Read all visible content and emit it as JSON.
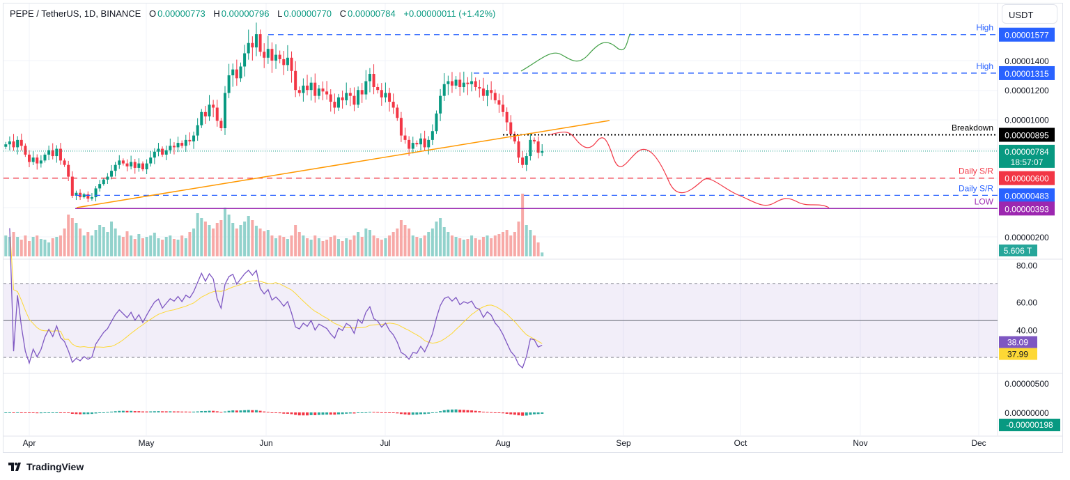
{
  "header": {
    "symbol": "PEPE / TetherUS, 1D, BINANCE",
    "o_label": "O",
    "o": "0.00000773",
    "h_label": "H",
    "h": "0.00000796",
    "l_label": "L",
    "l": "0.00000770",
    "c_label": "C",
    "c": "0.00000784",
    "change": "+0.00000011 (+1.42%)"
  },
  "currency": "USDT",
  "footer": {
    "brand": "TradingView"
  },
  "colors": {
    "up": "#089981",
    "down": "#f23645",
    "vol_up": "#92d2cc",
    "vol_down": "#f7a9a7",
    "rsi": "#7e57c2",
    "rsi_ma": "#fdd835",
    "trendline": "#ff9800",
    "blue_level": "#2962ff",
    "red_level": "#f23645",
    "low_level": "#9c27b0"
  },
  "levels": [
    {
      "label": "High",
      "value": "0.00001577",
      "color": "#2962ff"
    },
    {
      "label": "High",
      "value": "0.00001315",
      "color": "#2962ff"
    },
    {
      "label": "Breakdown",
      "value": "0.00000895",
      "color": "#000000"
    },
    {
      "label": "Daily S/R",
      "value": "0.00000600",
      "color": "#f23645"
    },
    {
      "label": "Daily S/R",
      "value": "0.00000483",
      "color": "#2962ff"
    },
    {
      "label": "LOW",
      "value": "0.00000393",
      "color": "#9c27b0"
    }
  ],
  "last_price": {
    "value": "0.00000784",
    "countdown": "18:57:07"
  },
  "volume_label": "5.606 T",
  "rsi_labels": {
    "rsi": "38.09",
    "ma": "37.99"
  },
  "macd_label": "-0.00000198",
  "chart_data": [
    {
      "type": "candlestick",
      "title": "PEPE / TetherUS, 1D, BINANCE",
      "start_date": "2024-03-26",
      "interval": "1D",
      "x_ticks": [
        "Apr",
        "May",
        "Jun",
        "Jul",
        "Aug",
        "Sep",
        "Oct",
        "Nov",
        "Dec"
      ],
      "y_ticks": [
        "0.00001400",
        "0.00001200",
        "0.00001000",
        "0.00000200"
      ],
      "ylim": [
        2e-07,
        1.65e-05
      ],
      "close": [
        8.3e-06,
        8.5e-06,
        8.1e-06,
        8.6e-06,
        8.2e-06,
        7.6e-06,
        7.1e-06,
        7.4e-06,
        7e-06,
        7.2e-06,
        7.6e-06,
        7.9e-06,
        7.5e-06,
        8e-06,
        7.2e-06,
        6.9e-06,
        6.1e-06,
        4.8e-06,
        5e-06,
        4.7e-06,
        4.9e-06,
        4.6e-06,
        4.7e-06,
        5.3e-06,
        5.6e-06,
        5.9e-06,
        6.1e-06,
        6.5e-06,
        6.9e-06,
        7.2e-06,
        7e-06,
        6.8e-06,
        7.1e-06,
        6.7e-06,
        7e-06,
        6.6e-06,
        7e-06,
        7.4e-06,
        7.8e-06,
        8e-06,
        7.6e-06,
        7.9e-06,
        8.2e-06,
        8.1e-06,
        8.4e-06,
        8.2e-06,
        8.6e-06,
        8.5e-06,
        8.9e-06,
        9.6e-06,
        1.05e-05,
        1.02e-05,
        1.1e-05,
        1.08e-05,
        9.9e-06,
        9.4e-06,
        1.18e-05,
        1.3e-05,
        1.34e-05,
        1.28e-05,
        1.36e-05,
        1.45e-05,
        1.52e-05,
        1.49e-05,
        1.58e-05,
        1.46e-05,
        1.42e-05,
        1.48e-05,
        1.4e-05,
        1.44e-05,
        1.41e-05,
        1.37e-05,
        1.42e-05,
        1.33e-05,
        1.2e-05,
        1.18e-05,
        1.23e-05,
        1.2e-05,
        1.25e-05,
        1.16e-05,
        1.21e-05,
        1.19e-05,
        1.17e-05,
        1.12e-05,
        1.08e-05,
        1.15e-05,
        1.13e-05,
        1.18e-05,
        1.16e-05,
        1.1e-05,
        1.2e-05,
        1.17e-05,
        1.26e-05,
        1.31e-05,
        1.22e-05,
        1.2e-05,
        1.15e-05,
        1.18e-05,
        1.12e-05,
        1.08e-05,
        1.01e-05,
        8.9e-06,
        8.6e-06,
        8e-06,
        8.4e-06,
        8.3e-06,
        8.7e-06,
        8.1e-06,
        8.6e-06,
        9.2e-06,
        1.04e-05,
        1.16e-05,
        1.24e-05,
        1.26e-05,
        1.23e-05,
        1.27e-05,
        1.22e-05,
        1.25e-05,
        1.24e-05,
        1.26e-05,
        1.22e-05,
        1.21e-05,
        1.16e-05,
        1.2e-05,
        1.18e-05,
        1.13e-05,
        1.1e-05,
        1.05e-05,
        9.8e-06,
        9e-06,
        8.5e-06,
        7.4e-06,
        6.9e-06,
        7.5e-06,
        8.6e-06,
        8.5e-06,
        7.73e-06,
        7.84e-06
      ],
      "volume_unit": "T",
      "volume": [
        30,
        28,
        35,
        28,
        24,
        30,
        22,
        28,
        30,
        25,
        24,
        20,
        26,
        28,
        30,
        40,
        60,
        55,
        48,
        40,
        30,
        35,
        30,
        38,
        45,
        42,
        35,
        50,
        40,
        30,
        28,
        36,
        30,
        25,
        32,
        26,
        28,
        30,
        34,
        26,
        24,
        28,
        30,
        25,
        24,
        30,
        26,
        35,
        40,
        62,
        55,
        50,
        45,
        40,
        48,
        52,
        70,
        60,
        48,
        40,
        45,
        50,
        58,
        52,
        44,
        40,
        36,
        38,
        30,
        26,
        30,
        28,
        25,
        30,
        45,
        35,
        30,
        26,
        24,
        30,
        26,
        22,
        24,
        28,
        30,
        25,
        22,
        26,
        24,
        30,
        35,
        28,
        40,
        38,
        30,
        26,
        24,
        26,
        30,
        35,
        40,
        52,
        45,
        40,
        30,
        28,
        26,
        30,
        35,
        40,
        50,
        55,
        42,
        35,
        30,
        28,
        26,
        24,
        25,
        30,
        26,
        24,
        28,
        30,
        26,
        30,
        32,
        35,
        38,
        30,
        35,
        50,
        90,
        45,
        38,
        30,
        20,
        5.606
      ]
    },
    {
      "type": "line",
      "title": "RSI",
      "y_ticks": [
        "80.00",
        "60.00",
        "40.00"
      ],
      "bands": [
        30,
        50,
        70
      ],
      "last": 38.09,
      "ma_last": 37.99
    },
    {
      "type": "bar",
      "title": "MACD histogram",
      "y_ticks": [
        "0.00000500",
        "0.00000000"
      ],
      "last": -1.98e-06
    }
  ]
}
